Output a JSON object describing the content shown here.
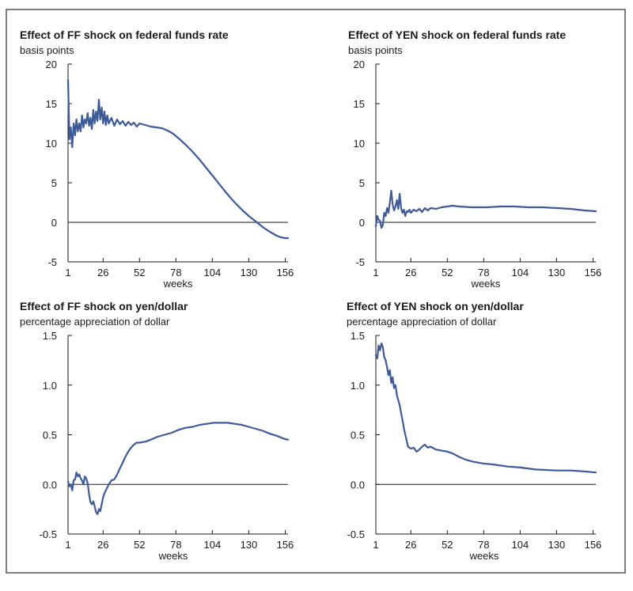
{
  "colors": {
    "line": "#3d5a99",
    "axis": "#1a1a1a",
    "frame": "#555555"
  },
  "chart_data": [
    {
      "type": "line",
      "title": "Effect of FF shock on federal funds rate",
      "ylabel": "basis points",
      "xlabel": "weeks",
      "xticks": [
        1,
        26,
        52,
        78,
        104,
        130,
        156
      ],
      "xlim": [
        1,
        158
      ],
      "yticks": [
        -5,
        0,
        5,
        10,
        15,
        20
      ],
      "ytick_labels": [
        "-5",
        "0",
        "5",
        "10",
        "15",
        "20"
      ],
      "ylim": [
        -5,
        20
      ],
      "series": [
        {
          "x": [
            1,
            2,
            3,
            4,
            5,
            6,
            7,
            8,
            9,
            10,
            11,
            12,
            13,
            14,
            15,
            16,
            17,
            18,
            19,
            20,
            21,
            22,
            23,
            24,
            25,
            26,
            27,
            28,
            29,
            30,
            32,
            34,
            36,
            38,
            40,
            42,
            44,
            46,
            48,
            50,
            52,
            56,
            60,
            64,
            68,
            72,
            76,
            80,
            85,
            90,
            95,
            100,
            105,
            110,
            115,
            120,
            125,
            130,
            135,
            140,
            145,
            150,
            153,
            156,
            158
          ],
          "y": [
            18,
            10.5,
            12,
            9.5,
            12.5,
            11,
            13,
            11.5,
            12.5,
            11.5,
            13.5,
            12,
            13,
            12.5,
            13.8,
            12.2,
            13.2,
            11.8,
            14.2,
            12.5,
            14,
            12.8,
            15.5,
            13,
            14.5,
            12.5,
            14,
            12.3,
            13.5,
            12.5,
            13.2,
            12.2,
            13,
            12.4,
            12.8,
            12.2,
            12.7,
            12.3,
            12.6,
            12.1,
            12.5,
            12.3,
            12.1,
            12,
            11.9,
            11.6,
            11.2,
            10.6,
            9.8,
            8.9,
            7.9,
            6.8,
            5.7,
            4.6,
            3.5,
            2.5,
            1.6,
            0.8,
            0.1,
            -0.6,
            -1.2,
            -1.7,
            -1.9,
            -2,
            -2
          ]
        }
      ]
    },
    {
      "type": "line",
      "title": "Effect of YEN shock on federal funds rate",
      "ylabel": "basis points",
      "xlabel": "weeks",
      "xticks": [
        1,
        26,
        52,
        78,
        104,
        130,
        156
      ],
      "xlim": [
        1,
        158
      ],
      "yticks": [
        -5,
        0,
        5,
        10,
        15,
        20
      ],
      "ytick_labels": [
        "-5",
        "0",
        "5",
        "10",
        "15",
        "20"
      ],
      "ylim": [
        -5,
        20
      ],
      "series": [
        {
          "x": [
            1,
            2,
            3,
            4,
            5,
            6,
            7,
            8,
            9,
            10,
            11,
            12,
            13,
            14,
            15,
            16,
            17,
            18,
            19,
            20,
            21,
            22,
            23,
            24,
            25,
            26,
            28,
            30,
            32,
            34,
            36,
            38,
            40,
            44,
            48,
            52,
            56,
            60,
            70,
            80,
            90,
            100,
            110,
            120,
            130,
            140,
            150,
            158
          ],
          "y": [
            -0.5,
            0.8,
            0.3,
            0.2,
            -0.7,
            -0.3,
            1.2,
            0.8,
            1.8,
            1.2,
            2.5,
            4,
            2.3,
            1.5,
            2,
            2.8,
            1.7,
            3.6,
            1.8,
            1.2,
            1.6,
            0.8,
            1.4,
            1.3,
            1.6,
            1.2,
            1.6,
            1.4,
            1.7,
            1.3,
            1.8,
            1.5,
            1.8,
            1.7,
            1.9,
            2,
            2.1,
            2,
            1.9,
            1.9,
            2,
            2,
            1.9,
            1.9,
            1.8,
            1.7,
            1.5,
            1.4
          ]
        }
      ]
    },
    {
      "type": "line",
      "title": "Effect of FF shock on yen/dollar",
      "ylabel": "percentage appreciation of dollar",
      "xlabel": "weeks",
      "xticks": [
        1,
        26,
        52,
        78,
        104,
        130,
        156
      ],
      "xlim": [
        1,
        158
      ],
      "yticks": [
        -0.5,
        0.0,
        0.5,
        1.0,
        1.5
      ],
      "ytick_labels": [
        "-0.5",
        "0.0",
        "0.5",
        "1.0",
        "1.5"
      ],
      "ylim": [
        -0.5,
        1.5
      ],
      "series": [
        {
          "x": [
            1,
            2,
            3,
            4,
            5,
            6,
            7,
            8,
            9,
            10,
            11,
            12,
            13,
            14,
            15,
            16,
            17,
            18,
            19,
            20,
            21,
            22,
            23,
            24,
            25,
            26,
            27,
            28,
            30,
            32,
            34,
            36,
            38,
            40,
            42,
            44,
            46,
            48,
            50,
            52,
            56,
            60,
            65,
            70,
            75,
            80,
            85,
            90,
            95,
            100,
            105,
            110,
            115,
            120,
            125,
            130,
            135,
            140,
            145,
            150,
            155,
            158
          ],
          "y": [
            0.03,
            -0.02,
            0.0,
            -0.06,
            0.04,
            0.05,
            0.12,
            0.08,
            0.1,
            0.06,
            0.04,
            0.0,
            0.08,
            0.06,
            0.01,
            -0.1,
            -0.18,
            -0.2,
            -0.17,
            -0.22,
            -0.28,
            -0.3,
            -0.25,
            -0.27,
            -0.2,
            -0.13,
            -0.09,
            -0.06,
            0.0,
            0.04,
            0.05,
            0.1,
            0.16,
            0.22,
            0.28,
            0.33,
            0.37,
            0.4,
            0.42,
            0.42,
            0.43,
            0.45,
            0.48,
            0.5,
            0.52,
            0.55,
            0.57,
            0.58,
            0.6,
            0.61,
            0.62,
            0.62,
            0.62,
            0.61,
            0.6,
            0.58,
            0.56,
            0.54,
            0.51,
            0.49,
            0.46,
            0.45
          ]
        }
      ]
    },
    {
      "type": "line",
      "title": "Effect of YEN shock on yen/dollar",
      "ylabel": "percentage appreciation of dollar",
      "xlabel": "weeks",
      "xticks": [
        1,
        26,
        52,
        78,
        104,
        130,
        156
      ],
      "xlim": [
        1,
        158
      ],
      "yticks": [
        -0.5,
        0.0,
        0.5,
        1.0,
        1.5
      ],
      "ytick_labels": [
        "-0.5",
        "0.0",
        "0.5",
        "1.0",
        "1.5"
      ],
      "ylim": [
        -0.5,
        1.5
      ],
      "series": [
        {
          "x": [
            1,
            2,
            3,
            4,
            5,
            6,
            7,
            8,
            9,
            10,
            11,
            12,
            13,
            14,
            15,
            16,
            17,
            18,
            19,
            20,
            21,
            22,
            23,
            24,
            25,
            26,
            28,
            30,
            32,
            34,
            36,
            38,
            40,
            44,
            48,
            52,
            56,
            60,
            65,
            70,
            78,
            85,
            95,
            104,
            115,
            130,
            140,
            150,
            158
          ],
          "y": [
            1.3,
            1.27,
            1.4,
            1.35,
            1.42,
            1.38,
            1.28,
            1.25,
            1.18,
            1.1,
            1.15,
            1.02,
            1.08,
            0.97,
            1.0,
            0.9,
            0.85,
            0.8,
            0.72,
            0.65,
            0.57,
            0.5,
            0.44,
            0.38,
            0.37,
            0.36,
            0.37,
            0.33,
            0.35,
            0.38,
            0.4,
            0.37,
            0.38,
            0.35,
            0.34,
            0.33,
            0.31,
            0.28,
            0.25,
            0.23,
            0.21,
            0.2,
            0.18,
            0.17,
            0.15,
            0.14,
            0.14,
            0.13,
            0.12
          ]
        }
      ]
    }
  ]
}
